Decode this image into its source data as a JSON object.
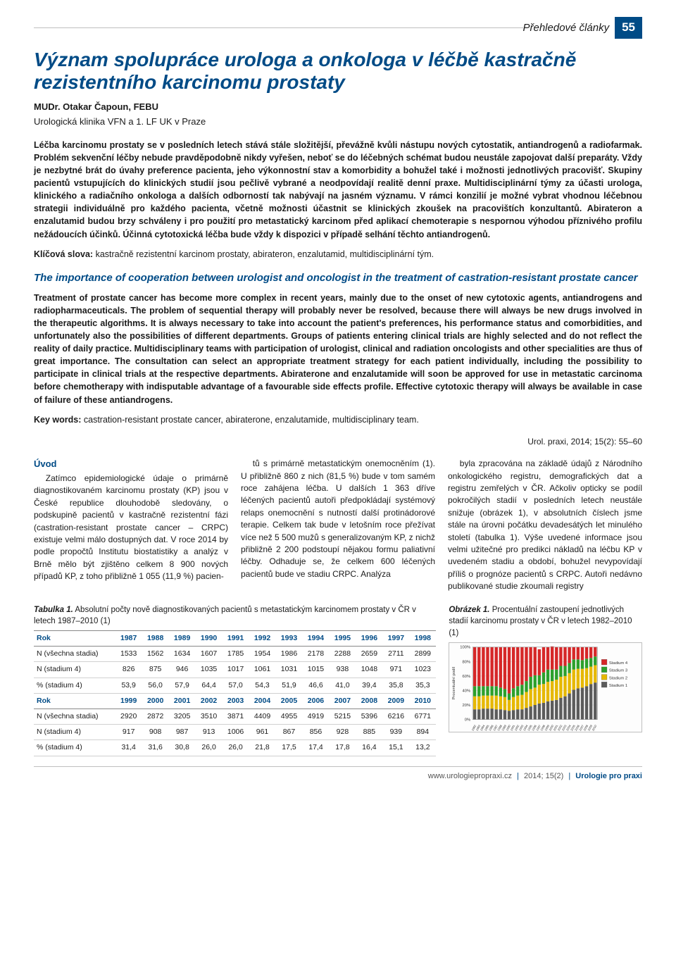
{
  "header": {
    "category": "Přehledové články",
    "page_number": "55"
  },
  "title": "Význam spolupráce urologa a onkologa v léčbě kastračně rezistentního karcinomu prostaty",
  "author_name": "MUDr. Otakar Čapoun, FEBU",
  "affiliation": "Urologická klinika VFN a 1. LF UK v Praze",
  "abstract_cz": "Léčba karcinomu prostaty se v posledních letech stává stále složitější, převážně kvůli nástupu nových cytostatik, antiandrogenů a radiofarmak. Problém sekvenční léčby nebude pravděpodobně nikdy vyřešen, neboť se do léčebných schémat budou neustále zapojovat další preparáty. Vždy je nezbytné brát do úvahy preference pacienta, jeho výkonnostní stav a komorbidity a bohužel také i možnosti jednotlivých pracovišť. Skupiny pacientů vstupujících do klinických studií jsou pečlivě vybrané a neodpovídají realitě denní praxe. Multidisciplinární týmy za účasti urologa, klinického a radiačního onkologa a dalších odborností tak nabývají na jasném významu. V rámci konzilií je možné vybrat vhodnou léčebnou strategii individuálně pro každého pacienta, včetně možnosti účastnit se klinických zkoušek na pracovištích konzultantů. Abirateron a enzalutamid budou brzy schváleny i pro použití pro metastatický karcinom před aplikací chemoterapie s nespornou výhodou příznivého profilu nežádoucích účinků. Účinná cytotoxická léčba bude vždy k dispozici v případě selhání těchto antiandrogenů.",
  "keywords_cz_label": "Klíčová slova:",
  "keywords_cz": "kastračně rezistentní karcinom prostaty, abirateron, enzalutamid, multidisciplinární tým.",
  "title_en": "The importance of cooperation between urologist and oncologist in the treatment of castration-resistant prostate cancer",
  "abstract_en": "Treatment of prostate cancer has become more complex in recent years, mainly due to the onset of new cytotoxic agents, antiandrogens and radiopharmaceuticals. The problem of sequential therapy will probably never be resolved, because there will always be new drugs involved in the therapeutic algorithms. It is always necessary to take into account the patient's preferences, his performance status and comorbidities, and unfortunately also the possibilities of different departments. Groups of patients entering clinical trials are highly selected and do not reflect the reality of daily practice. Multidisciplinary teams with participation of urologist, clinical and radiation oncologists and other specialities are thus of great importance. The consultation can select an appropriate treatment strategy for each patient individually, including the possibility to participate in clinical trials at the respective departments. Abiraterone and enzalutamide will soon be approved for use in metastatic carcinoma before chemotherapy with indisputable advantage of a favourable side effects profile. Effective cytotoxic therapy will always be available in case of failure of these antiandrogens.",
  "keywords_en_label": "Key words:",
  "keywords_en": "castration-resistant prostate cancer, abiraterone, enzalutamide, multidisciplinary team.",
  "citation": "Urol. praxi, 2014; 15(2): 55–60",
  "intro_heading": "Úvod",
  "col1": "Zatímco epidemiologické údaje o primárně diagnostikovaném karcinomu prostaty (KP) jsou v České republice dlouhodobě sledovány, o podskupině pacientů v kastračně rezistentní fázi (castration-resistant prostate cancer – CRPC) existuje velmi málo dostupných dat. V roce 2014 by podle propočtů Institutu biostatistiky a analýz v Brně mělo být zjištěno celkem 8 900 nových případů KP, z toho přibližně 1 055 (11,9 %) pacien-",
  "col2": "tů s primárně metastatickým onemocněním (1). U přibližně 860 z nich (81,5 %) bude v tom samém roce zahájena léčba. U dalších 1 363 dříve léčených pacientů autoři předpokládají systémový relaps onemocnění s nutností další protinádorové terapie. Celkem tak bude v letošním roce přežívat více než 5 500 mužů s generalizovaným KP, z nichž přibližně 2 200 podstoupí nějakou formu paliativní léčby. Odhaduje se, že celkem 600 léčených pacientů bude ve stadiu CRPC. Analýza",
  "col3": "byla zpracována na základě údajů z Národního onkologického registru, demografických dat a registru zemřelých v ČR. Ačkoliv opticky se podíl pokročilých stadií v posledních letech neustále snižuje (obrázek 1), v absolutních číslech jsme stále na úrovni počátku devadesátých let minulého století (tabulka 1). Výše uvedené informace jsou velmi užitečné pro predikci nákladů na léčbu KP v uvedeném stadiu a období, bohužel nevypovídají příliš o prognóze pacientů s CRPC. Autoři nedávno publikované studie zkoumali registry",
  "table": {
    "caption_label": "Tabulka 1.",
    "caption_text": "Absolutní počty nově diagnostikovaných pacientů s metastatickým karcinomem prostaty v ČR v letech 1987–2010 (1)",
    "row_labels": [
      "Rok",
      "N (všechna stadia)",
      "N (stadium 4)",
      "% (stadium 4)"
    ],
    "block1": {
      "years": [
        "1987",
        "1988",
        "1989",
        "1990",
        "1991",
        "1992",
        "1993",
        "1994",
        "1995",
        "1996",
        "1997",
        "1998"
      ],
      "n_all": [
        "1533",
        "1562",
        "1634",
        "1607",
        "1785",
        "1954",
        "1986",
        "2178",
        "2288",
        "2659",
        "2711",
        "2899"
      ],
      "n_s4": [
        "826",
        "875",
        "946",
        "1035",
        "1017",
        "1061",
        "1031",
        "1015",
        "938",
        "1048",
        "971",
        "1023"
      ],
      "pct": [
        "53,9",
        "56,0",
        "57,9",
        "64,4",
        "57,0",
        "54,3",
        "51,9",
        "46,6",
        "41,0",
        "39,4",
        "35,8",
        "35,3"
      ]
    },
    "block2": {
      "years": [
        "1999",
        "2000",
        "2001",
        "2002",
        "2003",
        "2004",
        "2005",
        "2006",
        "2007",
        "2008",
        "2009",
        "2010"
      ],
      "n_all": [
        "2920",
        "2872",
        "3205",
        "3510",
        "3871",
        "4409",
        "4955",
        "4919",
        "5215",
        "5396",
        "6216",
        "6771"
      ],
      "n_s4": [
        "917",
        "908",
        "987",
        "913",
        "1006",
        "961",
        "867",
        "856",
        "928",
        "885",
        "939",
        "894"
      ],
      "pct": [
        "31,4",
        "31,6",
        "30,8",
        "26,0",
        "26,0",
        "21,8",
        "17,5",
        "17,4",
        "17,8",
        "16,4",
        "15,1",
        "13,2"
      ]
    }
  },
  "figure": {
    "caption_label": "Obrázek 1.",
    "caption_text": "Procentuální zastoupení jednotlivých stadií karcinomu prostaty v ČR v letech 1982–2010 (1)",
    "y_axis_label": "Procentuální podíl",
    "y_ticks": [
      "0%",
      "20%",
      "40%",
      "60%",
      "80%",
      "100%"
    ],
    "legend": [
      "Stadium 4",
      "Stadium 3",
      "Stadium 2",
      "Stadium 1"
    ],
    "colors": {
      "s4": "#d62728",
      "s3": "#2ca02c",
      "s2": "#e6b800",
      "s1": "#5b5b5b",
      "grid": "#d8d8d8",
      "bg": "#fdfdfd"
    },
    "years": [
      "1982",
      "1983",
      "1984",
      "1985",
      "1986",
      "1987",
      "1988",
      "1989",
      "1990",
      "1991",
      "1992",
      "1993",
      "1994",
      "1995",
      "1996",
      "1997",
      "1998",
      "1999",
      "2000",
      "2001",
      "2002",
      "2003",
      "2004",
      "2005",
      "2006",
      "2007",
      "2008",
      "2009",
      "2010"
    ],
    "series_pct": {
      "s1": [
        14,
        14,
        15,
        15,
        15,
        14,
        14,
        13,
        12,
        13,
        14,
        14,
        16,
        18,
        20,
        22,
        23,
        25,
        26,
        27,
        30,
        32,
        36,
        41,
        43,
        44,
        46,
        49,
        51
      ],
      "s2": [
        18,
        18,
        18,
        18,
        18,
        19,
        18,
        18,
        15,
        18,
        19,
        20,
        22,
        24,
        24,
        26,
        26,
        27,
        27,
        28,
        29,
        28,
        28,
        28,
        27,
        26,
        25,
        24,
        24
      ],
      "s3": [
        14,
        14,
        13,
        13,
        13,
        13,
        12,
        11,
        9,
        12,
        13,
        14,
        15,
        17,
        17,
        13,
        16,
        17,
        16,
        14,
        15,
        14,
        14,
        14,
        13,
        12,
        13,
        12,
        12
      ],
      "s4": [
        54,
        54,
        54,
        54,
        54,
        54,
        56,
        58,
        64,
        57,
        54,
        52,
        47,
        41,
        39,
        36,
        35,
        31,
        32,
        31,
        26,
        26,
        22,
        17,
        17,
        18,
        16,
        15,
        13
      ]
    }
  },
  "footer": {
    "url": "www.urologiepropraxi.cz",
    "issue": "2014; 15(2)",
    "journal": "Urologie pro praxi"
  }
}
